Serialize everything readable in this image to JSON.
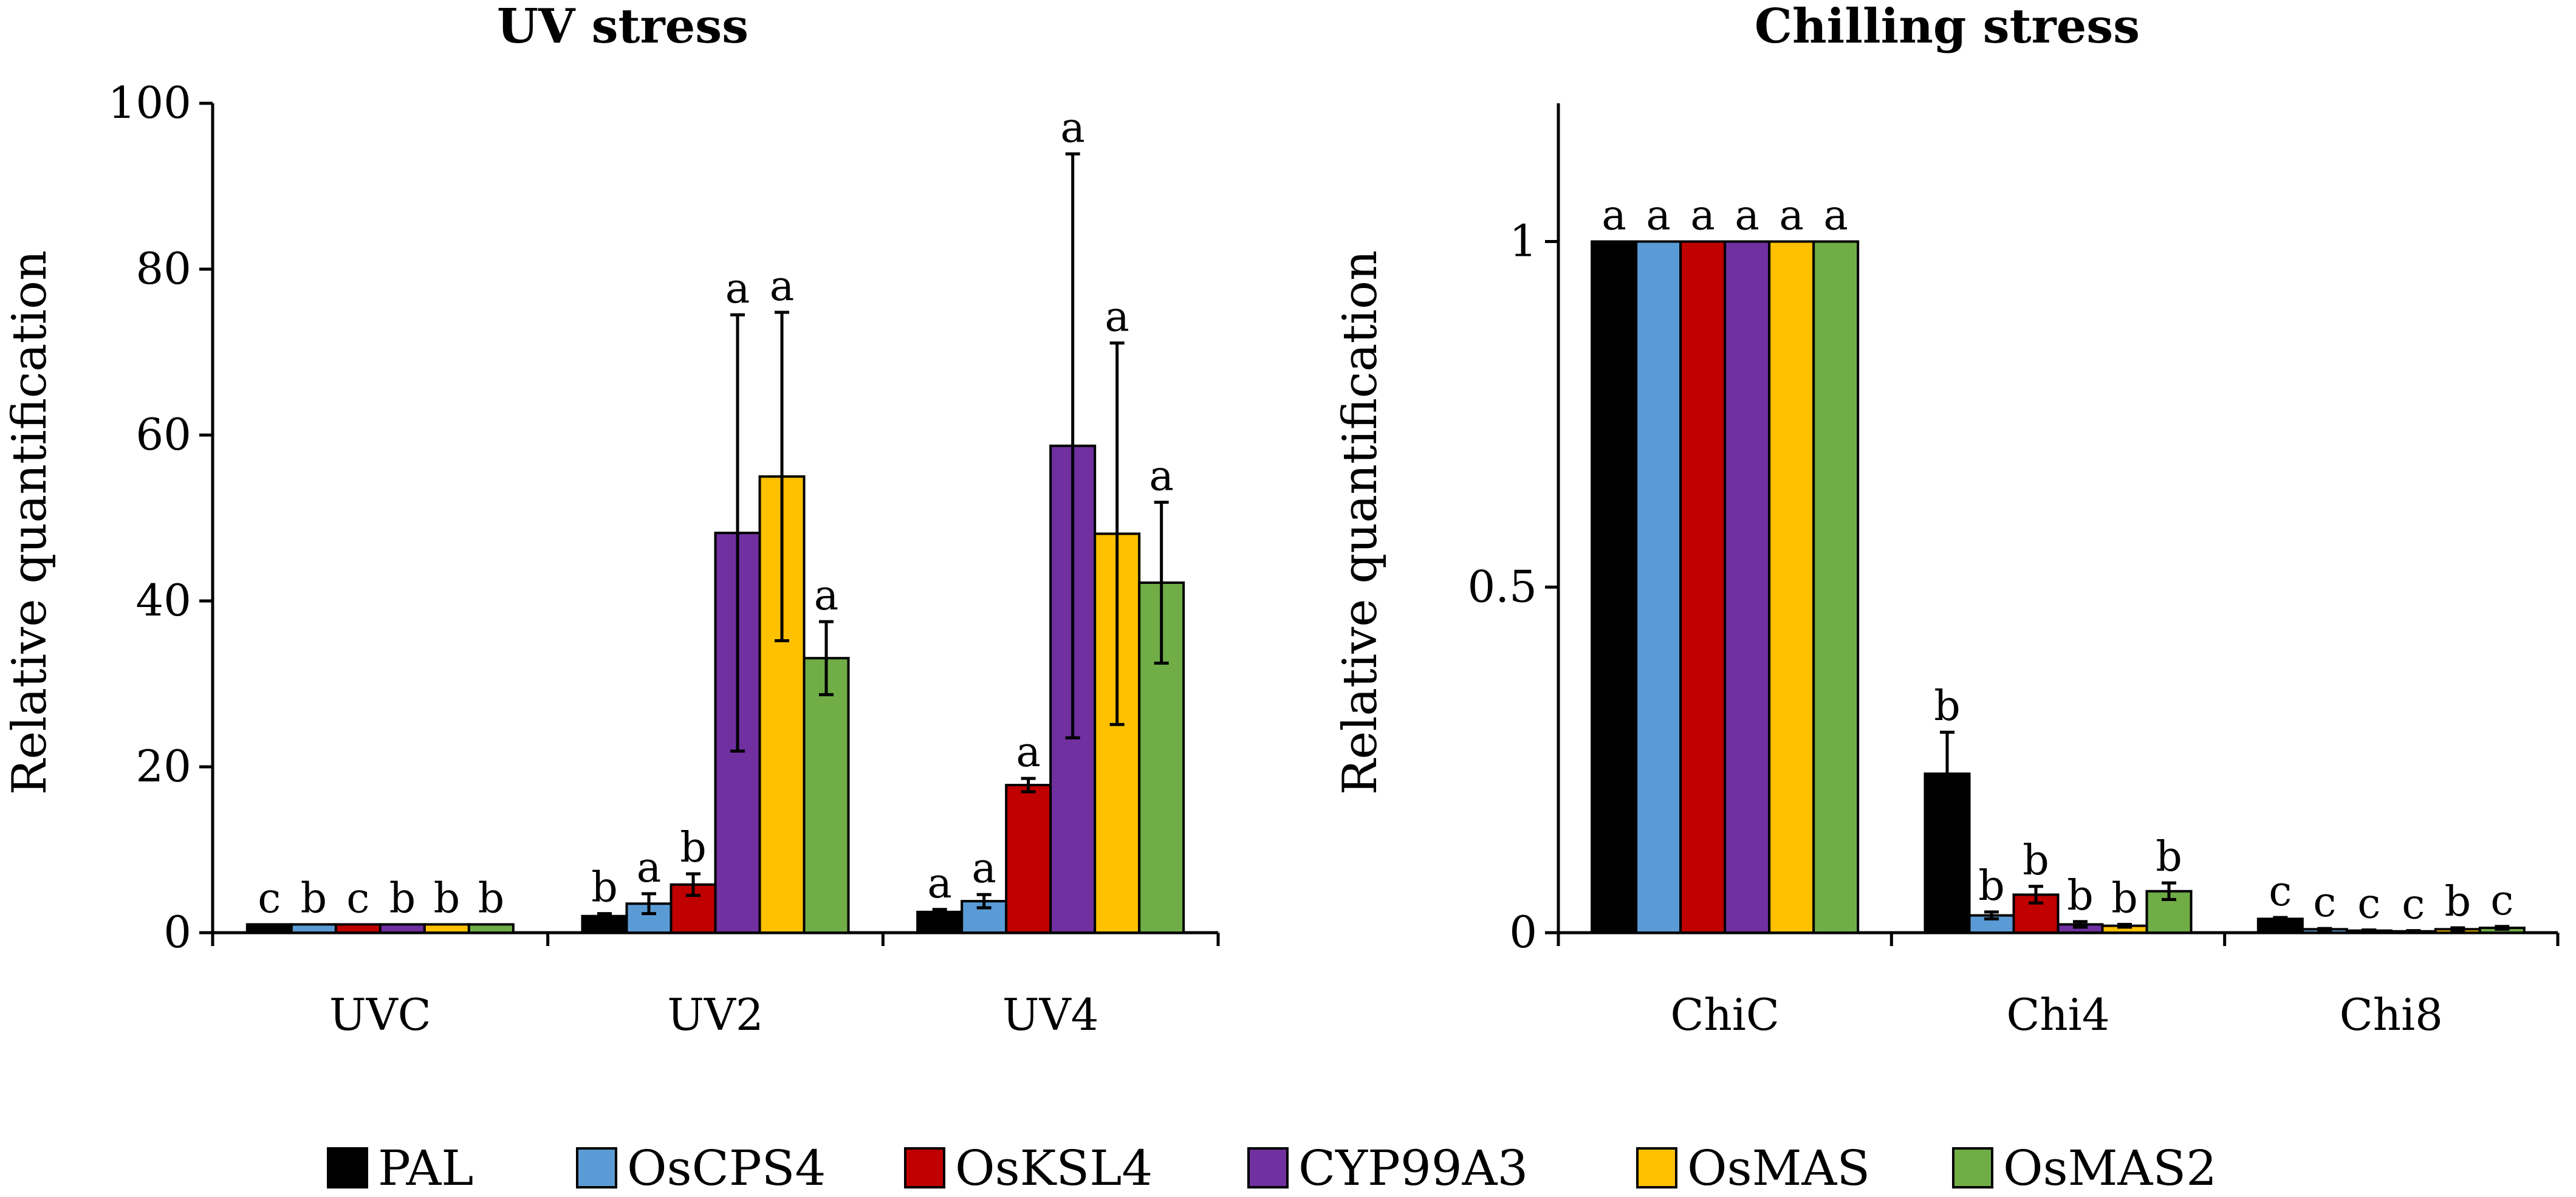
{
  "legend": [
    {
      "name": "PAL",
      "color": "#000000"
    },
    {
      "name": "OsCPS4",
      "color": "#5B9BD5"
    },
    {
      "name": "OsKSL4",
      "color": "#C00000"
    },
    {
      "name": "CYP99A3",
      "color": "#7030A0"
    },
    {
      "name": "OsMAS",
      "color": "#FFC000"
    },
    {
      "name": "OsMAS2",
      "color": "#70AD47"
    }
  ],
  "chart_data": [
    {
      "type": "bar",
      "title": "UV stress",
      "ylabel": "Relative quantification",
      "xlabel": "",
      "ylim": [
        0,
        100
      ],
      "yticks": [
        0,
        20,
        40,
        60,
        80,
        100
      ],
      "ytick_labels": [
        "0",
        "20",
        "40",
        "60",
        "80",
        "100"
      ],
      "categories": [
        "UVC",
        "UV2",
        "UV4"
      ],
      "series": [
        {
          "name": "PAL",
          "values": [
            1,
            2,
            2.5
          ],
          "errors": [
            0,
            0.3,
            0.3
          ],
          "letters": [
            "c",
            "b",
            "a"
          ]
        },
        {
          "name": "OsCPS4",
          "values": [
            1,
            3.5,
            3.8
          ],
          "errors": [
            0,
            1.2,
            0.8
          ],
          "letters": [
            "b",
            "a",
            "a"
          ]
        },
        {
          "name": "OsKSL4",
          "values": [
            1,
            5.8,
            17.8
          ],
          "errors": [
            0,
            1.3,
            0.8
          ],
          "letters": [
            "c",
            "b",
            "a"
          ]
        },
        {
          "name": "CYP99A3",
          "values": [
            1,
            48.2,
            58.7
          ],
          "errors": [
            0,
            26.3,
            35.2
          ],
          "letters": [
            "b",
            "a",
            "a"
          ]
        },
        {
          "name": "OsMAS",
          "values": [
            1,
            55,
            48.1
          ],
          "errors": [
            0,
            19.8,
            23
          ],
          "letters": [
            "b",
            "a",
            "a"
          ]
        },
        {
          "name": "OsMAS2",
          "values": [
            1,
            33.1,
            42.2
          ],
          "errors": [
            0,
            4.4,
            9.7
          ],
          "letters": [
            "b",
            "a",
            "a"
          ]
        }
      ]
    },
    {
      "type": "bar",
      "title": "Chilling stress",
      "ylabel": "Relative quantification",
      "xlabel": "",
      "ylim": [
        0,
        1.2
      ],
      "yticks": [
        0,
        0.5,
        1
      ],
      "ytick_labels": [
        "0",
        "0.5",
        "1"
      ],
      "categories": [
        "ChiC",
        "Chi4",
        "Chi8"
      ],
      "series": [
        {
          "name": "PAL",
          "values": [
            1,
            0.23,
            0.02
          ],
          "errors": [
            0,
            0.06,
            0.002
          ],
          "letters": [
            "a",
            "b",
            "c"
          ]
        },
        {
          "name": "OsCPS4",
          "values": [
            1,
            0.025,
            0.005
          ],
          "errors": [
            0,
            0.005,
            0.001
          ],
          "letters": [
            "a",
            "b",
            "c"
          ]
        },
        {
          "name": "OsKSL4",
          "values": [
            1,
            0.055,
            0.003
          ],
          "errors": [
            0,
            0.012,
            0.001
          ],
          "letters": [
            "a",
            "b",
            "c"
          ]
        },
        {
          "name": "CYP99A3",
          "values": [
            1,
            0.012,
            0.002
          ],
          "errors": [
            0,
            0.004,
            0.001
          ],
          "letters": [
            "a",
            "b",
            "c"
          ]
        },
        {
          "name": "OsMAS",
          "values": [
            1,
            0.01,
            0.005
          ],
          "errors": [
            0,
            0.002,
            0.002
          ],
          "letters": [
            "a",
            "b",
            "b"
          ]
        },
        {
          "name": "OsMAS2",
          "values": [
            1,
            0.06,
            0.007
          ],
          "errors": [
            0,
            0.012,
            0.002
          ],
          "letters": [
            "a",
            "b",
            "c"
          ]
        }
      ]
    }
  ]
}
